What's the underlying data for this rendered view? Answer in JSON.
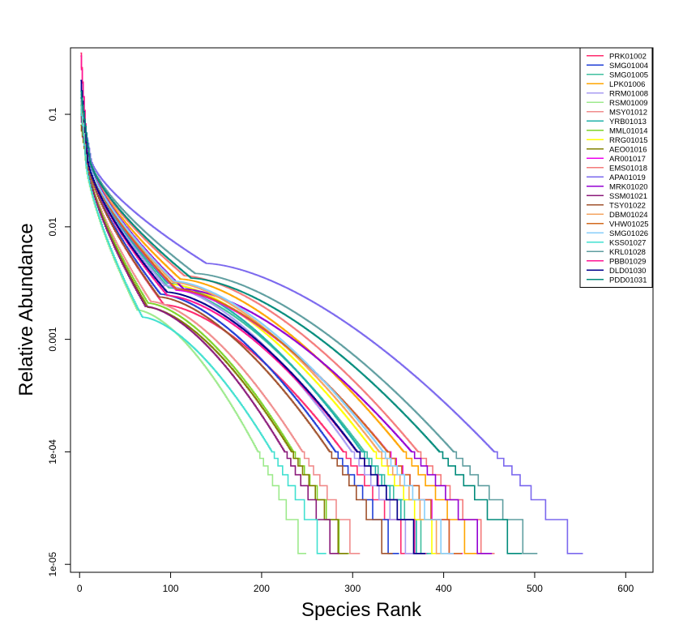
{
  "chart_data": {
    "type": "line",
    "title": "",
    "xlabel": "Species Rank",
    "ylabel": "Relative Abundance",
    "xlim": [
      -10,
      630
    ],
    "ylim": [
      8.5e-06,
      0.39
    ],
    "log_y": true,
    "x_ticks": [
      {
        "value": 0,
        "label": "0"
      },
      {
        "value": 100,
        "label": "100"
      },
      {
        "value": 200,
        "label": "200"
      },
      {
        "value": 300,
        "label": "300"
      },
      {
        "value": 400,
        "label": "400"
      },
      {
        "value": 500,
        "label": "500"
      },
      {
        "value": 600,
        "label": "600"
      }
    ],
    "y_ticks": [
      {
        "value": 1e-05,
        "label": "1e-05"
      },
      {
        "value": 0.0001,
        "label": "1e-04"
      },
      {
        "value": 0.001,
        "label": "0.001"
      },
      {
        "value": 0.01,
        "label": "0.01"
      },
      {
        "value": 0.1,
        "label": "0.1"
      }
    ],
    "grid": false,
    "legend_position": "top-right",
    "series": [
      {
        "name": "PRK01002",
        "color": "#ff2a6d",
        "n": 366,
        "shape": 0.58,
        "top": 0.35
      },
      {
        "name": "SMG01004",
        "color": "#1f3fd6",
        "n": 351,
        "shape": 0.72,
        "top": 0.2
      },
      {
        "name": "SMG01005",
        "color": "#3fbf9f",
        "n": 388,
        "shape": 0.82,
        "top": 0.16
      },
      {
        "name": "LPK01006",
        "color": "#ffa500",
        "n": 438,
        "shape": 0.98,
        "top": 0.15
      },
      {
        "name": "RRM01008",
        "color": "#a89bf2",
        "n": 370,
        "shape": 0.86,
        "top": 0.14
      },
      {
        "name": "RSM01009",
        "color": "#9dea8c",
        "n": 249,
        "shape": 0.52,
        "top": 0.12
      },
      {
        "name": "MSY01012",
        "color": "#f08c8c",
        "n": 308,
        "shape": 0.62,
        "top": 0.13
      },
      {
        "name": "YRB01013",
        "color": "#20b2aa",
        "n": 383,
        "shape": 0.9,
        "top": 0.14
      },
      {
        "name": "MML01014",
        "color": "#7fd42a",
        "n": 296,
        "shape": 0.6,
        "top": 0.11
      },
      {
        "name": "RRG01015",
        "color": "#ffff00",
        "n": 400,
        "shape": 0.88,
        "top": 0.12
      },
      {
        "name": "AEO01016",
        "color": "#808000",
        "n": 295,
        "shape": 0.55,
        "top": 0.08
      },
      {
        "name": "AR001017",
        "color": "#ee00ee",
        "n": 421,
        "shape": 0.78,
        "top": 0.15
      },
      {
        "name": "EMS01018",
        "color": "#f47a7a",
        "n": 456,
        "shape": 1.05,
        "top": 0.14
      },
      {
        "name": "APA01019",
        "color": "#7b68ee",
        "n": 553,
        "shape": 1.35,
        "top": 0.13
      },
      {
        "name": "MRK01020",
        "color": "#9400d3",
        "n": 453,
        "shape": 0.8,
        "top": 0.14
      },
      {
        "name": "SSM01021",
        "color": "#8b1a7a",
        "n": 285,
        "shape": 0.56,
        "top": 0.1
      },
      {
        "name": "TSY01022",
        "color": "#a0522d",
        "n": 344,
        "shape": 0.68,
        "top": 0.12
      },
      {
        "name": "DBM01024",
        "color": "#f4a460",
        "n": 406,
        "shape": 0.92,
        "top": 0.13
      },
      {
        "name": "VHW01025",
        "color": "#d2691e",
        "n": 420,
        "shape": 0.8,
        "top": 0.12
      },
      {
        "name": "SMG01026",
        "color": "#87cefa",
        "n": 411,
        "shape": 0.94,
        "top": 0.15
      },
      {
        "name": "KSS01027",
        "color": "#40e0d0",
        "n": 271,
        "shape": 0.45,
        "top": 0.12
      },
      {
        "name": "KRL01028",
        "color": "#5f9ea0",
        "n": 503,
        "shape": 1.1,
        "top": 0.14
      },
      {
        "name": "PBB01029",
        "color": "#ff1493",
        "n": 381,
        "shape": 0.7,
        "top": 0.33
      },
      {
        "name": "DLD01030",
        "color": "#00008b",
        "n": 380,
        "shape": 0.75,
        "top": 0.2
      },
      {
        "name": "PDD01031",
        "color": "#008b7b",
        "n": 486,
        "shape": 1.0,
        "top": 0.16
      }
    ]
  }
}
